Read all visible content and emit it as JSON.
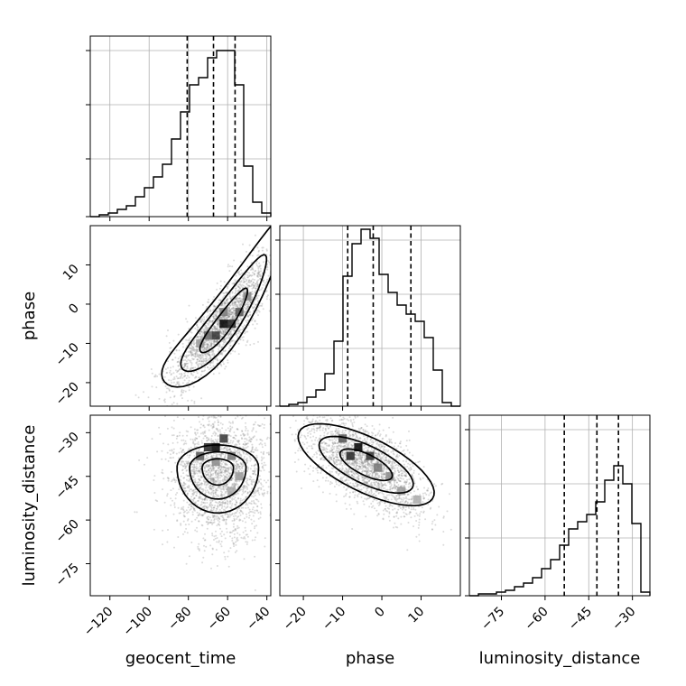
{
  "chart_data": [
    {
      "type": "histogram",
      "panel": "geocent_time 1D marginal",
      "x_param": "geocent_time",
      "xlim": [
        -130,
        -38
      ],
      "grid": true,
      "bins_left_edges": [
        -130,
        -125.4,
        -120.8,
        -116.2,
        -111.6,
        -107,
        -102.4,
        -97.8,
        -93.2,
        -88.6,
        -84,
        -79.4,
        -74.8,
        -70.2,
        -65.6,
        -61,
        -56.4,
        -51.8,
        -47.2,
        -42.6
      ],
      "counts": [
        0,
        0.01,
        0.02,
        0.04,
        0.06,
        0.11,
        0.16,
        0.22,
        0.29,
        0.43,
        0.58,
        0.73,
        0.77,
        0.88,
        0.92,
        0.92,
        0.73,
        0.28,
        0.08,
        0.02
      ],
      "quantile_lines": [
        -80.6,
        -67.2,
        -56.2
      ]
    },
    {
      "type": "scatter+contour",
      "panel": "geocent_time vs phase",
      "x_param": "geocent_time",
      "y_param": "phase",
      "xlim": [
        -130,
        -38
      ],
      "ylim": [
        -26,
        20
      ],
      "ylabel": "phase",
      "y_ticks": [
        -20,
        -10,
        0,
        10
      ],
      "density_peak": {
        "x": -62,
        "y": -5
      }
    },
    {
      "type": "scatter+contour",
      "panel": "geocent_time vs luminosity_distance",
      "x_param": "geocent_time",
      "y_param": "luminosity_distance",
      "xlim": [
        -130,
        -38
      ],
      "ylim": [
        -86,
        -24
      ],
      "ylabel": "luminosity_distance",
      "xlabel": "geocent_time",
      "x_ticks": [
        -120,
        -100,
        -80,
        -60,
        -40
      ],
      "y_ticks": [
        -75,
        -60,
        -45,
        -30
      ],
      "density_peak": {
        "x": -68,
        "y": -35
      }
    },
    {
      "type": "histogram",
      "panel": "phase 1D marginal",
      "x_param": "phase",
      "xlim": [
        -26,
        20
      ],
      "grid": true,
      "bins_left_edges": [
        -26,
        -23.7,
        -21.4,
        -19.1,
        -16.8,
        -14.5,
        -12.2,
        -9.9,
        -7.6,
        -5.3,
        -3,
        -0.7,
        1.6,
        3.9,
        6.2,
        8.5,
        10.8,
        13.1,
        15.4,
        17.7
      ],
      "counts": [
        0,
        0.01,
        0.02,
        0.05,
        0.09,
        0.18,
        0.36,
        0.72,
        0.9,
        0.98,
        0.93,
        0.73,
        0.63,
        0.56,
        0.51,
        0.47,
        0.38,
        0.2,
        0.02,
        0
      ],
      "quantile_lines": [
        -8.7,
        -2.2,
        7.4
      ]
    },
    {
      "type": "scatter+contour",
      "panel": "phase vs luminosity_distance",
      "x_param": "phase",
      "y_param": "luminosity_distance",
      "xlim": [
        -26,
        20
      ],
      "ylim": [
        -86,
        -24
      ],
      "xlabel": "phase",
      "x_ticks": [
        -20,
        -10,
        0,
        10
      ],
      "density_peak": {
        "x": -6,
        "y": -35
      }
    },
    {
      "type": "histogram",
      "panel": "luminosity_distance 1D marginal",
      "x_param": "luminosity_distance",
      "xlim": [
        -86,
        -24
      ],
      "grid": true,
      "xlabel": "luminosity_distance",
      "x_ticks": [
        -75,
        -60,
        -45,
        -30
      ],
      "bins_left_edges": [
        -86,
        -82.9,
        -79.8,
        -76.7,
        -73.6,
        -70.5,
        -67.4,
        -64.3,
        -61.2,
        -58.1,
        -55,
        -51.9,
        -48.8,
        -45.7,
        -42.6,
        -39.5,
        -36.4,
        -33.3,
        -30.2,
        -27.1
      ],
      "counts": [
        0,
        0.01,
        0.01,
        0.02,
        0.03,
        0.05,
        0.07,
        0.1,
        0.15,
        0.2,
        0.28,
        0.37,
        0.41,
        0.45,
        0.52,
        0.64,
        0.72,
        0.62,
        0.4,
        0.02
      ],
      "quantile_lines": [
        -53.4,
        -42.2,
        -34.8
      ]
    }
  ]
}
